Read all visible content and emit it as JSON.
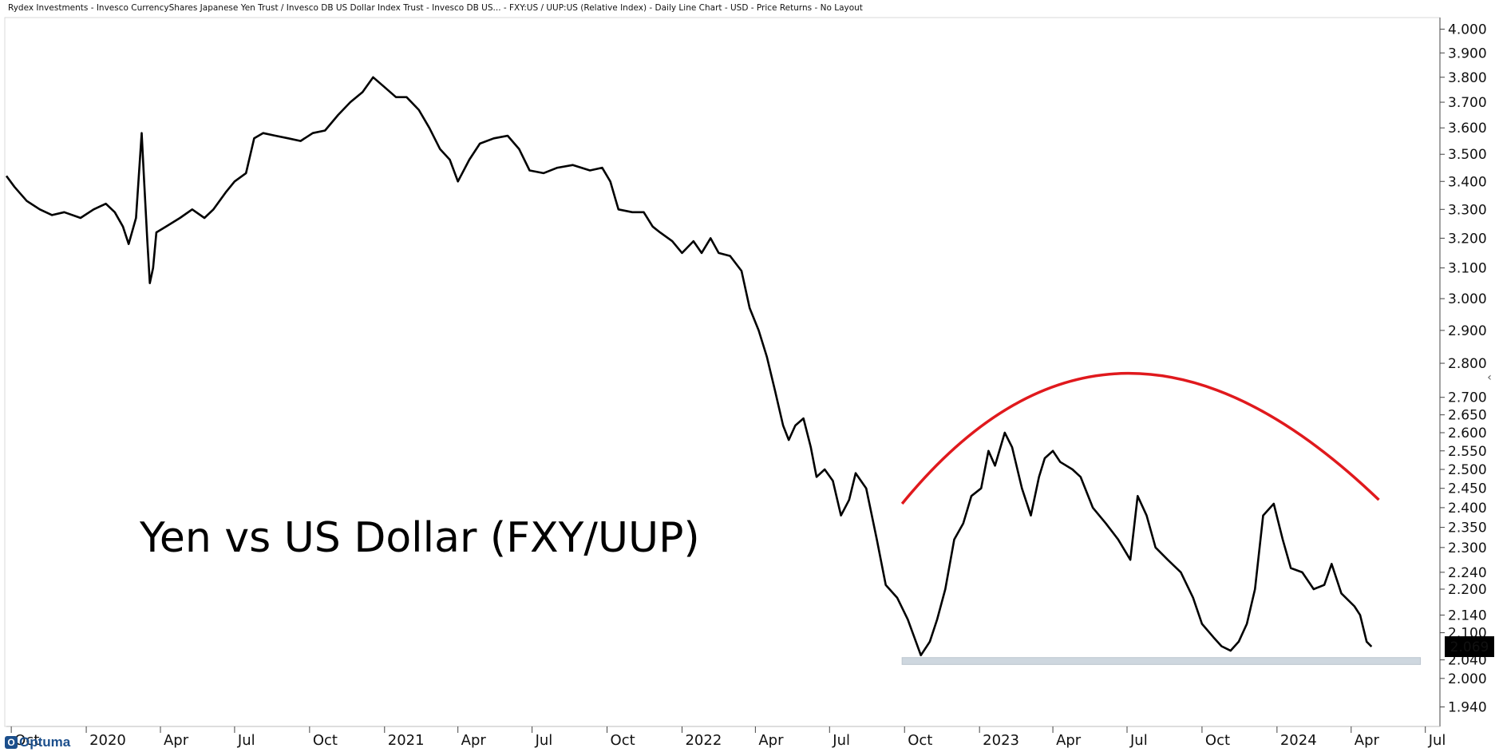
{
  "header": {
    "title": "Rydex Investments - Invesco CurrencyShares Japanese Yen Trust / Invesco DB US Dollar Index Trust - Invesco DB US... - FXY:US / UUP:US (Relative Index) - Daily Line Chart - USD - Price Returns - No Layout"
  },
  "brand": {
    "name": "Optuma",
    "mark": "O"
  },
  "colors": {
    "line": "#000000",
    "arc": "#e0191d",
    "support_band": "#c9d3dc",
    "last_price_bg": "#000000",
    "last_price_text": "#ffffff"
  },
  "icons": {
    "collapse": "chevron-left-icon"
  },
  "chart_data": {
    "type": "line",
    "title": "",
    "annotation": "Yen vs US Dollar (FXY/UUP)",
    "y_scale": "log",
    "ylim": [
      1.9,
      4.05
    ],
    "xlim": [
      "2019-09-25",
      "2024-07-15"
    ],
    "y_ticks": [
      "4.000",
      "3.900",
      "3.800",
      "3.700",
      "3.600",
      "3.500",
      "3.400",
      "3.300",
      "3.200",
      "3.100",
      "3.000",
      "2.900",
      "2.800",
      "2.700",
      "2.650",
      "2.600",
      "2.550",
      "2.500",
      "2.450",
      "2.400",
      "2.350",
      "2.300",
      "2.240",
      "2.200",
      "2.140",
      "2.100",
      "2.040",
      "2.000",
      "1.940"
    ],
    "x_ticks": [
      {
        "label": "Oct",
        "date": "2019-10-01"
      },
      {
        "label": "2020",
        "date": "2020-01-01"
      },
      {
        "label": "Apr",
        "date": "2020-04-01"
      },
      {
        "label": "Jul",
        "date": "2020-07-01"
      },
      {
        "label": "Oct",
        "date": "2020-10-01"
      },
      {
        "label": "2021",
        "date": "2021-01-01"
      },
      {
        "label": "Apr",
        "date": "2021-04-01"
      },
      {
        "label": "Jul",
        "date": "2021-07-01"
      },
      {
        "label": "Oct",
        "date": "2021-10-01"
      },
      {
        "label": "2022",
        "date": "2022-01-01"
      },
      {
        "label": "Apr",
        "date": "2022-04-01"
      },
      {
        "label": "Jul",
        "date": "2022-07-01"
      },
      {
        "label": "Oct",
        "date": "2022-10-01"
      },
      {
        "label": "2023",
        "date": "2023-01-01"
      },
      {
        "label": "Apr",
        "date": "2023-04-01"
      },
      {
        "label": "Jul",
        "date": "2023-07-01"
      },
      {
        "label": "Oct",
        "date": "2023-10-01"
      },
      {
        "label": "2024",
        "date": "2024-01-01"
      },
      {
        "label": "Apr",
        "date": "2024-04-01"
      },
      {
        "label": "Jul",
        "date": "2024-07-01"
      }
    ],
    "last_value": "2.069",
    "series": [
      {
        "points": [
          [
            "2019-09-25",
            3.42
          ],
          [
            "2019-10-05",
            3.38
          ],
          [
            "2019-10-20",
            3.33
          ],
          [
            "2019-11-05",
            3.3
          ],
          [
            "2019-11-20",
            3.28
          ],
          [
            "2019-12-05",
            3.29
          ],
          [
            "2019-12-25",
            3.27
          ],
          [
            "2020-01-10",
            3.3
          ],
          [
            "2020-01-25",
            3.32
          ],
          [
            "2020-02-05",
            3.29
          ],
          [
            "2020-02-15",
            3.24
          ],
          [
            "2020-02-22",
            3.18
          ],
          [
            "2020-03-02",
            3.27
          ],
          [
            "2020-03-09",
            3.58
          ],
          [
            "2020-03-12",
            3.4
          ],
          [
            "2020-03-16",
            3.19
          ],
          [
            "2020-03-19",
            3.05
          ],
          [
            "2020-03-23",
            3.1
          ],
          [
            "2020-03-27",
            3.22
          ],
          [
            "2020-04-08",
            3.24
          ],
          [
            "2020-04-25",
            3.27
          ],
          [
            "2020-05-10",
            3.3
          ],
          [
            "2020-05-25",
            3.27
          ],
          [
            "2020-06-05",
            3.3
          ],
          [
            "2020-06-20",
            3.36
          ],
          [
            "2020-07-01",
            3.4
          ],
          [
            "2020-07-15",
            3.43
          ],
          [
            "2020-07-25",
            3.56
          ],
          [
            "2020-08-05",
            3.58
          ],
          [
            "2020-08-20",
            3.57
          ],
          [
            "2020-09-05",
            3.56
          ],
          [
            "2020-09-20",
            3.55
          ],
          [
            "2020-10-05",
            3.58
          ],
          [
            "2020-10-20",
            3.59
          ],
          [
            "2020-11-05",
            3.65
          ],
          [
            "2020-11-20",
            3.7
          ],
          [
            "2020-12-05",
            3.74
          ],
          [
            "2020-12-18",
            3.8
          ],
          [
            "2021-01-01",
            3.76
          ],
          [
            "2021-01-15",
            3.72
          ],
          [
            "2021-01-28",
            3.72
          ],
          [
            "2021-02-12",
            3.67
          ],
          [
            "2021-02-25",
            3.6
          ],
          [
            "2021-03-10",
            3.52
          ],
          [
            "2021-03-22",
            3.48
          ],
          [
            "2021-04-01",
            3.4
          ],
          [
            "2021-04-15",
            3.48
          ],
          [
            "2021-04-28",
            3.54
          ],
          [
            "2021-05-15",
            3.56
          ],
          [
            "2021-06-01",
            3.57
          ],
          [
            "2021-06-15",
            3.52
          ],
          [
            "2021-06-28",
            3.44
          ],
          [
            "2021-07-15",
            3.43
          ],
          [
            "2021-08-01",
            3.45
          ],
          [
            "2021-08-20",
            3.46
          ],
          [
            "2021-09-10",
            3.44
          ],
          [
            "2021-09-25",
            3.45
          ],
          [
            "2021-10-05",
            3.4
          ],
          [
            "2021-10-15",
            3.3
          ],
          [
            "2021-11-01",
            3.29
          ],
          [
            "2021-11-15",
            3.29
          ],
          [
            "2021-11-26",
            3.24
          ],
          [
            "2021-12-05",
            3.22
          ],
          [
            "2021-12-20",
            3.19
          ],
          [
            "2022-01-01",
            3.15
          ],
          [
            "2022-01-15",
            3.19
          ],
          [
            "2022-01-25",
            3.15
          ],
          [
            "2022-02-05",
            3.2
          ],
          [
            "2022-02-15",
            3.15
          ],
          [
            "2022-03-01",
            3.14
          ],
          [
            "2022-03-15",
            3.09
          ],
          [
            "2022-03-25",
            2.97
          ],
          [
            "2022-04-05",
            2.9
          ],
          [
            "2022-04-15",
            2.82
          ],
          [
            "2022-04-25",
            2.72
          ],
          [
            "2022-05-05",
            2.62
          ],
          [
            "2022-05-12",
            2.58
          ],
          [
            "2022-05-20",
            2.62
          ],
          [
            "2022-05-30",
            2.64
          ],
          [
            "2022-06-08",
            2.56
          ],
          [
            "2022-06-15",
            2.48
          ],
          [
            "2022-06-25",
            2.5
          ],
          [
            "2022-07-05",
            2.47
          ],
          [
            "2022-07-15",
            2.38
          ],
          [
            "2022-07-25",
            2.42
          ],
          [
            "2022-08-02",
            2.49
          ],
          [
            "2022-08-15",
            2.45
          ],
          [
            "2022-08-28",
            2.32
          ],
          [
            "2022-09-08",
            2.21
          ],
          [
            "2022-09-22",
            2.18
          ],
          [
            "2022-10-05",
            2.13
          ],
          [
            "2022-10-15",
            2.08
          ],
          [
            "2022-10-21",
            2.05
          ],
          [
            "2022-11-01",
            2.08
          ],
          [
            "2022-11-10",
            2.13
          ],
          [
            "2022-11-20",
            2.2
          ],
          [
            "2022-12-01",
            2.32
          ],
          [
            "2022-12-12",
            2.36
          ],
          [
            "2022-12-22",
            2.43
          ],
          [
            "2023-01-03",
            2.45
          ],
          [
            "2023-01-12",
            2.55
          ],
          [
            "2023-01-20",
            2.51
          ],
          [
            "2023-02-01",
            2.6
          ],
          [
            "2023-02-10",
            2.56
          ],
          [
            "2023-02-22",
            2.45
          ],
          [
            "2023-03-05",
            2.38
          ],
          [
            "2023-03-15",
            2.48
          ],
          [
            "2023-03-22",
            2.53
          ],
          [
            "2023-04-01",
            2.55
          ],
          [
            "2023-04-10",
            2.52
          ],
          [
            "2023-04-25",
            2.5
          ],
          [
            "2023-05-05",
            2.48
          ],
          [
            "2023-05-20",
            2.4
          ],
          [
            "2023-06-05",
            2.36
          ],
          [
            "2023-06-20",
            2.32
          ],
          [
            "2023-07-05",
            2.27
          ],
          [
            "2023-07-14",
            2.43
          ],
          [
            "2023-07-25",
            2.38
          ],
          [
            "2023-08-05",
            2.3
          ],
          [
            "2023-08-20",
            2.27
          ],
          [
            "2023-09-05",
            2.24
          ],
          [
            "2023-09-20",
            2.18
          ],
          [
            "2023-10-01",
            2.12
          ],
          [
            "2023-10-15",
            2.09
          ],
          [
            "2023-10-25",
            2.07
          ],
          [
            "2023-11-05",
            2.06
          ],
          [
            "2023-11-15",
            2.08
          ],
          [
            "2023-11-25",
            2.12
          ],
          [
            "2023-12-05",
            2.2
          ],
          [
            "2023-12-15",
            2.38
          ],
          [
            "2023-12-28",
            2.41
          ],
          [
            "2024-01-08",
            2.32
          ],
          [
            "2024-01-18",
            2.25
          ],
          [
            "2024-02-01",
            2.24
          ],
          [
            "2024-02-15",
            2.2
          ],
          [
            "2024-02-28",
            2.21
          ],
          [
            "2024-03-08",
            2.26
          ],
          [
            "2024-03-20",
            2.19
          ],
          [
            "2024-04-05",
            2.16
          ],
          [
            "2024-04-12",
            2.14
          ],
          [
            "2024-04-20",
            2.08
          ],
          [
            "2024-04-26",
            2.069
          ]
        ]
      }
    ],
    "annotations": {
      "arc": {
        "start": [
          "2022-09-28",
          2.41
        ],
        "peak": [
          "2023-07-01",
          2.77
        ],
        "end": [
          "2024-05-05",
          2.42
        ]
      },
      "support_band": {
        "from": "2022-09-28",
        "to": "2024-06-25",
        "y_low": 2.03,
        "y_high": 2.045
      }
    }
  }
}
